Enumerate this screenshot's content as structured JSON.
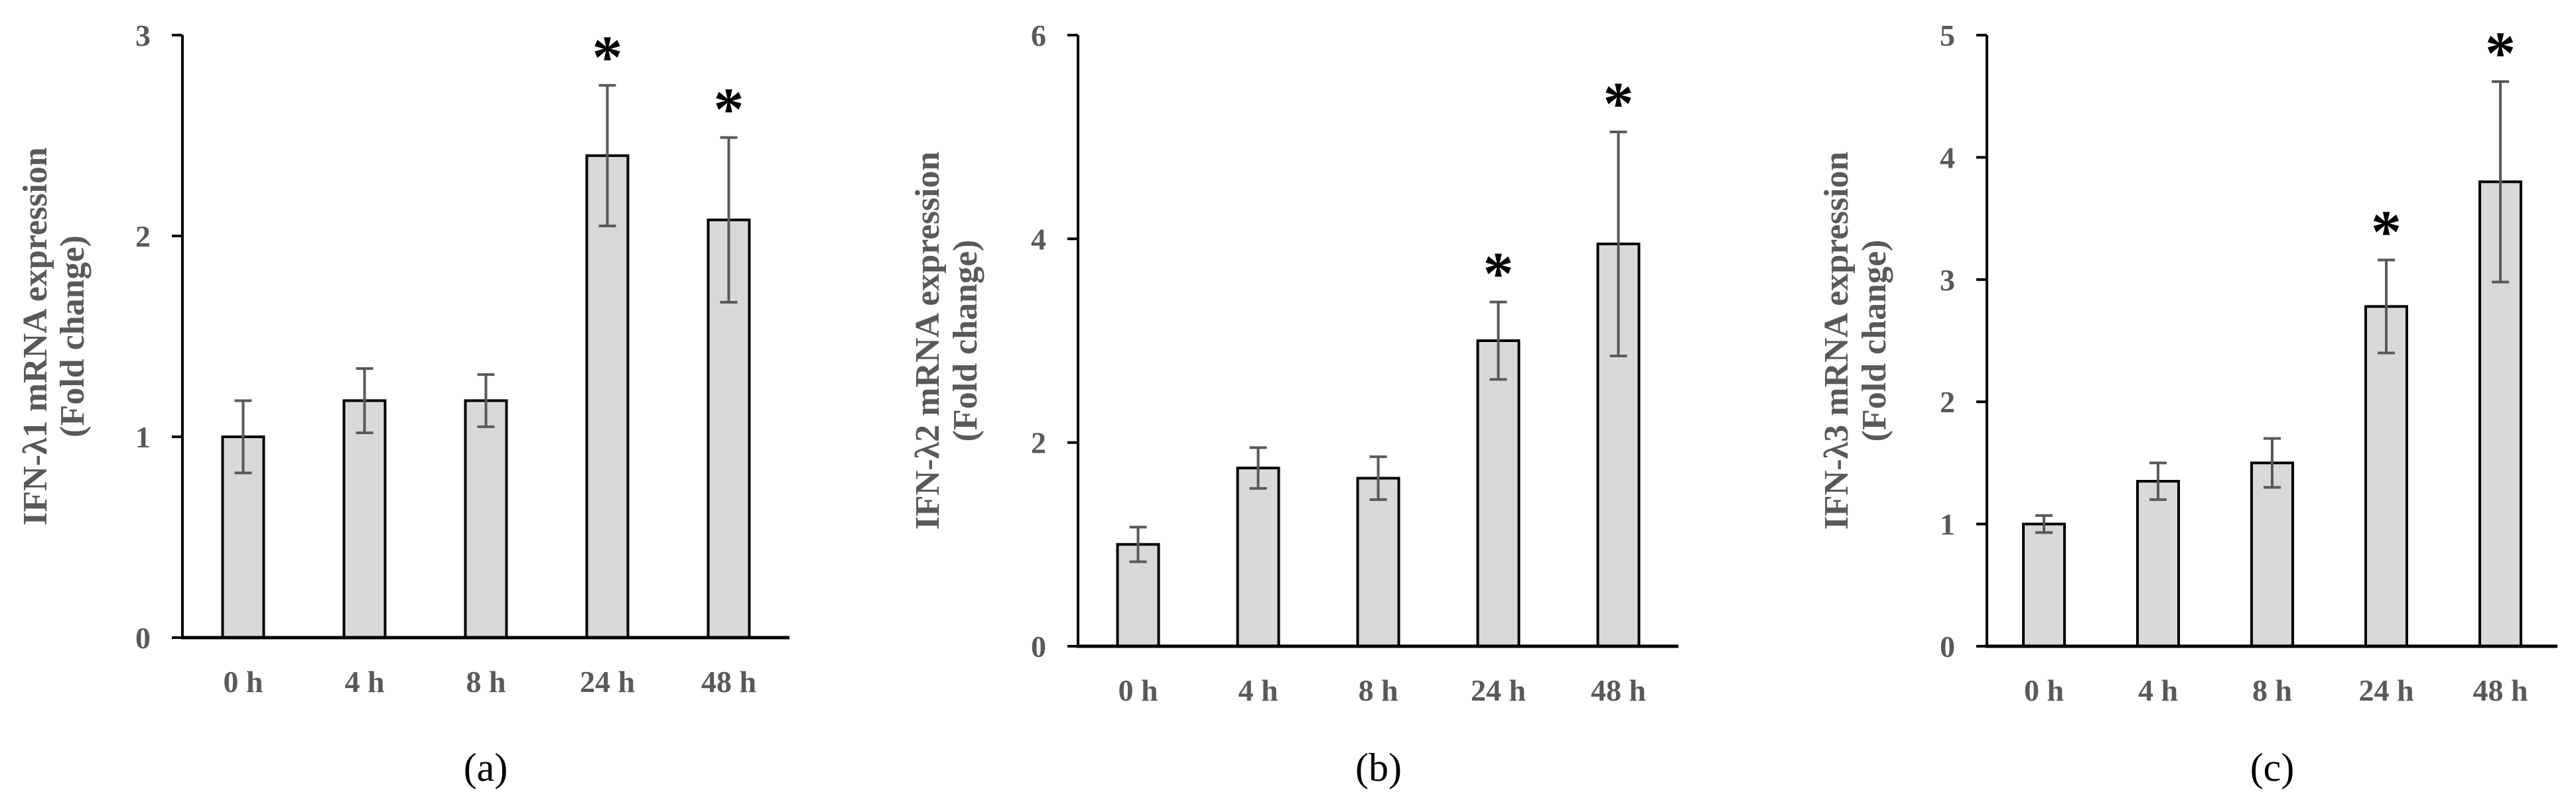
{
  "colors": {
    "bar_fill": "#d9d9d9",
    "bar_edge": "#000000",
    "axis": "#000000",
    "text": "#595959",
    "error": "#595959"
  },
  "chart_data": [
    {
      "type": "bar",
      "panel_label": "(a)",
      "ylabel_line1": "IFN-λ1 mRNA expression",
      "ylabel_line2": "(Fold change)",
      "categories": [
        "0 h",
        "4 h",
        "8 h",
        "24 h",
        "48 h"
      ],
      "values": [
        1.0,
        1.18,
        1.18,
        2.4,
        2.08
      ],
      "errors": [
        0.18,
        0.16,
        0.13,
        0.35,
        0.41
      ],
      "significant": [
        false,
        false,
        false,
        true,
        true
      ],
      "marker": "*",
      "ylim": [
        0,
        3
      ],
      "yticks": [
        "0",
        "1",
        "2",
        "3"
      ]
    },
    {
      "type": "bar",
      "panel_label": "(b)",
      "ylabel_line1": "IFN-λ2 mRNA expression",
      "ylabel_line2": "(Fold change)",
      "categories": [
        "0 h",
        "4 h",
        "8 h",
        "24 h",
        "48 h"
      ],
      "values": [
        1.0,
        1.75,
        1.65,
        3.0,
        3.95
      ],
      "errors": [
        0.17,
        0.2,
        0.21,
        0.38,
        1.1
      ],
      "significant": [
        false,
        false,
        false,
        true,
        true
      ],
      "marker": "*",
      "ylim": [
        0,
        6
      ],
      "yticks": [
        "0",
        "2",
        "4",
        "6"
      ]
    },
    {
      "type": "bar",
      "panel_label": "(c)",
      "ylabel_line1": "IFN-λ3 mRNA expression",
      "ylabel_line2": "(Fold change)",
      "categories": [
        "0 h",
        "4 h",
        "8 h",
        "24 h",
        "48 h"
      ],
      "values": [
        1.0,
        1.35,
        1.5,
        2.78,
        3.8
      ],
      "errors": [
        0.07,
        0.15,
        0.2,
        0.38,
        0.82
      ],
      "significant": [
        false,
        false,
        false,
        true,
        true
      ],
      "marker": "*",
      "ylim": [
        0,
        5
      ],
      "yticks": [
        "0",
        "1",
        "2",
        "3",
        "4",
        "5"
      ]
    }
  ]
}
